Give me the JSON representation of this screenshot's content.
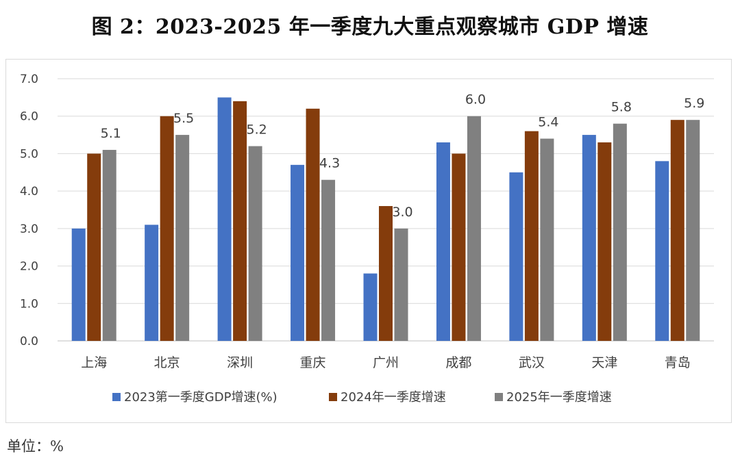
{
  "title": "图 2：2023-2025 年一季度九大重点观察城市 GDP 增速",
  "unit_note": "单位：%",
  "chart_data": {
    "type": "bar",
    "title": "图 2：2023-2025 年一季度九大重点观察城市 GDP 增速",
    "xlabel": "",
    "ylabel": "",
    "ylim": [
      0,
      7
    ],
    "yticks": [
      "0.0",
      "1.0",
      "2.0",
      "3.0",
      "4.0",
      "5.0",
      "6.0",
      "7.0"
    ],
    "grid": true,
    "legend_position": "bottom",
    "categories": [
      "上海",
      "北京",
      "深圳",
      "重庆",
      "广州",
      "成都",
      "武汉",
      "天津",
      "青岛"
    ],
    "series": [
      {
        "name": "2023第一季度GDP增速(%)",
        "color": "#4472C4",
        "values": [
          3.0,
          3.1,
          6.5,
          4.7,
          1.8,
          5.3,
          4.5,
          5.5,
          4.8
        ]
      },
      {
        "name": "2024年一季度增速",
        "color": "#843C0C",
        "values": [
          5.0,
          6.0,
          6.4,
          6.2,
          3.6,
          5.0,
          5.6,
          5.3,
          5.9
        ]
      },
      {
        "name": "2025年一季度增速",
        "color": "#808080",
        "values": [
          5.1,
          5.5,
          5.2,
          4.3,
          3.0,
          6.0,
          5.4,
          5.8,
          5.9
        ],
        "data_labels": [
          "5.1",
          "5.5",
          "5.2",
          "4.3",
          "3.0",
          "6.0",
          "5.4",
          "5.8",
          "5.9"
        ]
      }
    ]
  }
}
